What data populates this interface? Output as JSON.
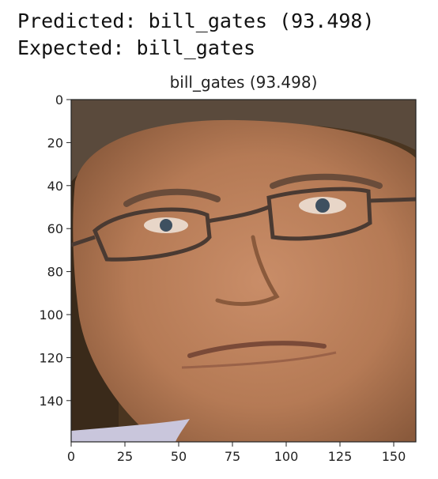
{
  "output": {
    "predicted_line": "Predicted: bill_gates (93.498)",
    "expected_line": "Expected: bill_gates"
  },
  "figure": {
    "title": "bill_gates (93.498)",
    "image_subject": "face photograph (portrait)",
    "colors": {
      "skin": "#b57a55",
      "hair": "#5a4a3c",
      "background": "#4a3520",
      "glasses": "#4a3a32",
      "shirt": "#c9c6dc"
    },
    "x_axis": {
      "range": [
        0,
        160
      ],
      "ticks": [
        0,
        25,
        50,
        75,
        100,
        125,
        150
      ]
    },
    "y_axis": {
      "range": [
        0,
        160
      ],
      "ticks": [
        0,
        20,
        40,
        60,
        80,
        100,
        120,
        140
      ],
      "inverted": true
    }
  }
}
